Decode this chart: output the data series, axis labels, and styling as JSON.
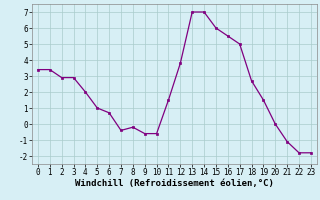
{
  "x": [
    0,
    1,
    2,
    3,
    4,
    5,
    6,
    7,
    8,
    9,
    10,
    11,
    12,
    13,
    14,
    15,
    16,
    17,
    18,
    19,
    20,
    21,
    22,
    23
  ],
  "y": [
    3.4,
    3.4,
    2.9,
    2.9,
    2.0,
    1.0,
    0.7,
    -0.4,
    -0.2,
    -0.6,
    -0.6,
    1.5,
    3.8,
    7.0,
    7.0,
    6.0,
    5.5,
    5.0,
    2.7,
    1.5,
    0.0,
    -1.1,
    -1.8,
    -1.8
  ],
  "line_color": "#800080",
  "marker": "s",
  "marker_size": 2,
  "bg_color": "#d7eff5",
  "grid_color": "#aacccc",
  "xlabel": "Windchill (Refroidissement éolien,°C)",
  "ylim": [
    -2.5,
    7.5
  ],
  "xlim": [
    -0.5,
    23.5
  ],
  "yticks": [
    -2,
    -1,
    0,
    1,
    2,
    3,
    4,
    5,
    6,
    7
  ],
  "xticks": [
    0,
    1,
    2,
    3,
    4,
    5,
    6,
    7,
    8,
    9,
    10,
    11,
    12,
    13,
    14,
    15,
    16,
    17,
    18,
    19,
    20,
    21,
    22,
    23
  ],
  "tick_label_fontsize": 5.5,
  "xlabel_fontsize": 6.5,
  "xlabel_bold": true
}
